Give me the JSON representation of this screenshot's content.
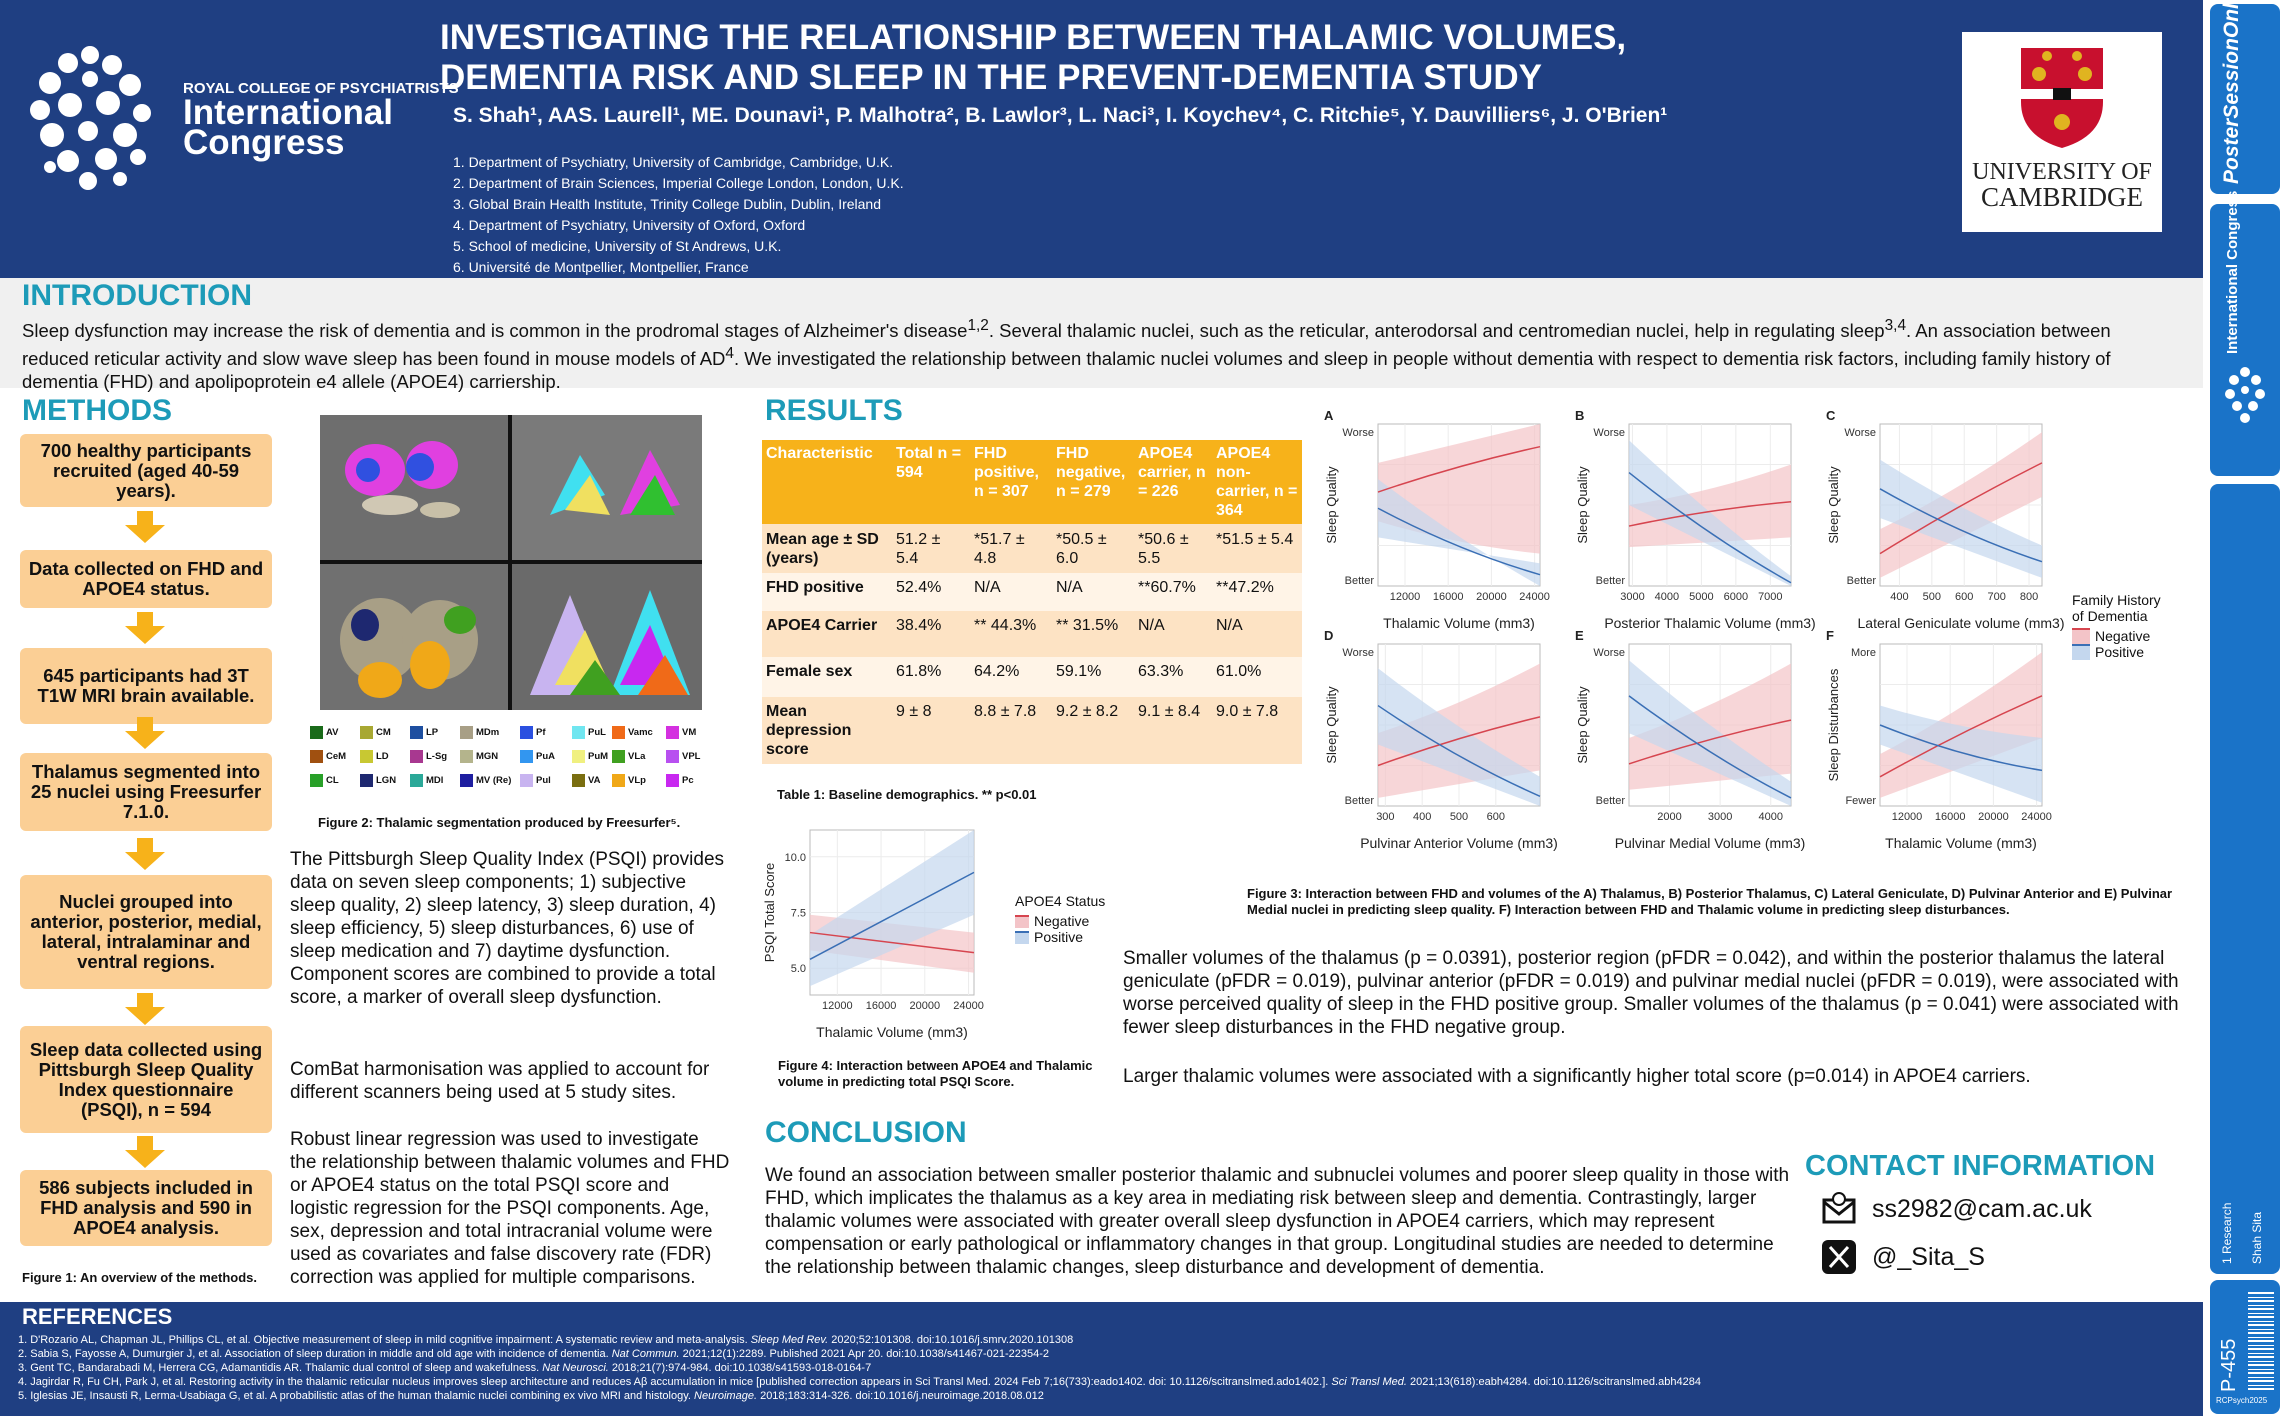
{
  "header": {
    "logo_small": "ROYAL COLLEGE OF PSYCHIATRISTS",
    "logo_big_1": "International",
    "logo_big_2": "Congress",
    "title_1": "INVESTIGATING THE RELATIONSHIP BETWEEN THALAMIC VOLUMES,",
    "title_2": "DEMENTIA RISK AND SLEEP IN THE PREVENT-DEMENTIA STUDY",
    "authors": "S. Shah¹, AAS. Laurell¹, ME. Dounavi¹, P. Malhotra², B. Lawlor³, L. Naci³, I. Koychev⁴, C. Ritchie⁵, Y. Dauvilliers⁶, J. O'Brien¹",
    "affiliations": [
      "1. Department of Psychiatry, University of Cambridge, Cambridge, U.K.",
      "2. Department of Brain Sciences, Imperial College London, London, U.K.",
      "3. Global Brain Health Institute, Trinity College Dublin, Dublin, Ireland",
      "4. Department of Psychiatry, University of Oxford, Oxford",
      "5. School of medicine, University of St Andrews, U.K.",
      "6. Université de Montpellier, Montpellier, France"
    ],
    "university_1": "UNIVERSITY OF",
    "university_2": "CAMBRIDGE"
  },
  "side_strip": {
    "poster_session": "PosterSessionOnline",
    "congress": "International Congress",
    "track": "1 Research",
    "author": "Shah Sita",
    "poster_id": "P-455",
    "footer": "RCPsych2025"
  },
  "intro": {
    "heading": "INTRODUCTION",
    "text_html": "Sleep dysfunction may increase the risk of dementia and is common in the prodromal stages of Alzheimer's disease<sup>1,2</sup>. Several thalamic nuclei, such as the reticular, anterodorsal and centromedian nuclei, help in regulating sleep<sup>3,4</sup>. An association between reduced reticular activity and slow wave sleep has been found in mouse models of AD<sup>4</sup>. We investigated the relationship between thalamic nuclei volumes and sleep in people without dementia with respect to dementia risk factors, including family history of dementia (FHD) and apolipoprotein e4 allele (APOE4) carriership."
  },
  "methods": {
    "heading": "METHODS",
    "flow": [
      "700 healthy participants recruited (aged 40-59 years).",
      "Data collected on FHD and APOE4 status.",
      "645 participants had 3T T1W MRI brain available.",
      "Thalamus segmented into 25 nuclei using Freesurfer 7.1.0.",
      "Nuclei grouped into anterior, posterior, medial, lateral, intralaminar and ventral regions.",
      "Sleep data collected using Pittsburgh Sleep Quality Index questionnaire (PSQI), n = 594",
      "586 subjects included in FHD analysis and 590 in APOE4 analysis."
    ],
    "fig1_caption": "Figure 1: An overview of the methods.",
    "fig2_caption": "Figure 2: Thalamic segmentation produced by Freesurfer⁵.",
    "nuclei_legend": [
      {
        "label": "AV",
        "color": "#1a6b1a"
      },
      {
        "label": "CM",
        "color": "#a8a832"
      },
      {
        "label": "LP",
        "color": "#1e4fa0"
      },
      {
        "label": "MDm",
        "color": "#a89f86"
      },
      {
        "label": "Pf",
        "color": "#2b50e0"
      },
      {
        "label": "PuL",
        "color": "#70e6f0"
      },
      {
        "label": "Vamc",
        "color": "#f06a18"
      },
      {
        "label": "VM",
        "color": "#d430e0"
      },
      {
        "label": "CeM",
        "color": "#a05010"
      },
      {
        "label": "LD",
        "color": "#c8c832"
      },
      {
        "label": "L-Sg",
        "color": "#a83890"
      },
      {
        "label": "MGN",
        "color": "#b4b48c"
      },
      {
        "label": "PuA",
        "color": "#3296f0"
      },
      {
        "label": "PuM",
        "color": "#f0f080"
      },
      {
        "label": "VLa",
        "color": "#40a020"
      },
      {
        "label": "VPL",
        "color": "#b850f0"
      },
      {
        "label": "CL",
        "color": "#28a028"
      },
      {
        "label": "LGN",
        "color": "#1e2870"
      },
      {
        "label": "MDl",
        "color": "#2aa898"
      },
      {
        "label": "MV (Re)",
        "color": "#1e1ea0"
      },
      {
        "label": "Pul",
        "color": "#c8b4f0"
      },
      {
        "label": "VA",
        "color": "#7a6e10"
      },
      {
        "label": "VLp",
        "color": "#f0a818"
      },
      {
        "label": "Pc",
        "color": "#c828f0"
      }
    ],
    "p1": "The Pittsburgh Sleep Quality Index (PSQI) provides data on seven sleep components; 1) subjective sleep quality, 2) sleep latency, 3) sleep duration, 4) sleep efficiency, 5) sleep disturbances, 6) use of sleep medication and 7) daytime dysfunction. Component scores are combined to provide a total score, a marker of overall sleep dysfunction.",
    "p2": "ComBat harmonisation was applied to account for different scanners being used at 5 study sites.",
    "p3": "Robust linear regression was used to investigate the relationship between thalamic volumes and FHD or APOE4 status on the total PSQI score and logistic regression for the PSQI components. Age, sex, depression and total intracranial volume were used as covariates and false discovery rate (FDR) correction was applied for multiple comparisons."
  },
  "results": {
    "heading": "RESULTS",
    "table": {
      "headers": [
        "Characteristic",
        "Total n = 594",
        "FHD positive, n = 307",
        "FHD negative, n = 279",
        "APOE4 carrier, n = 226",
        "APOE4 non-carrier, n = 364"
      ],
      "rows": [
        [
          "Mean age ± SD (years)",
          "51.2 ± 5.4",
          "*51.7 ± 4.8",
          "*50.5 ± 6.0",
          "*50.6 ± 5.5",
          "*51.5 ± 5.4"
        ],
        [
          "FHD positive",
          "52.4%",
          "N/A",
          "N/A",
          "**60.7%",
          "**47.2%"
        ],
        [
          "APOE4 Carrier",
          "38.4%",
          "** 44.3%",
          "** 31.5%",
          "N/A",
          "N/A"
        ],
        [
          "Female sex",
          "61.8%",
          "64.2%",
          "59.1%",
          "63.3%",
          "61.0%"
        ],
        [
          "Mean depression score",
          "9 ± 8",
          "8.8 ± 7.8",
          "9.2 ± 8.2",
          "9.1 ± 8.4",
          "9.0 ± 7.8"
        ]
      ],
      "caption": "Table 1: Baseline demographics. ** p<0.01"
    },
    "fig4_caption": "Figure 4: Interaction between APOE4 and Thalamic volume in predicting total PSQI Score.",
    "fig3_caption": "Figure 3: Interaction between FHD and volumes of the A) Thalamus, B) Posterior Thalamus, C) Lateral Geniculate, D) Pulvinar Anterior and E) Pulvinar Medial nuclei in predicting sleep quality. F) Interaction between FHD and Thalamic volume in predicting sleep disturbances.",
    "text1": "Smaller volumes of the thalamus (p = 0.0391), posterior region (pFDR = 0.042), and within the posterior thalamus the lateral geniculate (pFDR = 0.019), pulvinar anterior (pFDR = 0.019) and pulvinar medial nuclei (pFDR = 0.019), were associated with worse perceived quality of sleep in the FHD positive group. Smaller volumes of the thalamus (p = 0.041) were associated with fewer sleep disturbances in the FHD negative group.",
    "text2": "Larger thalamic volumes were associated with a significantly higher total score (p=0.014) in APOE4 carriers.",
    "fhd_legend": {
      "title_1": "Family History",
      "title_2": "of Dementia",
      "neg": "Negative",
      "pos": "Positive"
    },
    "apoe_legend": {
      "title": "APOE4 Status",
      "neg": "Negative",
      "pos": "Positive"
    }
  },
  "conclusion": {
    "heading": "CONCLUSION",
    "text": "We found an association between smaller posterior thalamic and subnuclei volumes and poorer sleep quality in those with FHD, which implicates the thalamus as a key area in mediating risk between sleep and dementia. Contrastingly, larger thalamic volumes were associated with greater overall sleep dysfunction in APOE4 carriers, which may represent compensation or early pathological or inflammatory changes in that group. Longitudinal studies are needed to determine the relationship between thalamic changes, sleep disturbance and development of dementia."
  },
  "contact": {
    "heading": "CONTACT INFORMATION",
    "email": "ss2982@cam.ac.uk",
    "handle": "@_Sita_S"
  },
  "references": {
    "heading": "REFERENCES",
    "items_html": [
      "1. D'Rozario AL, Chapman JL, Phillips CL, et al. Objective measurement of sleep in mild cognitive impairment: A systematic review and meta-analysis. <i>Sleep Med Rev.</i> 2020;52:101308. doi:10.1016/j.smrv.2020.101308",
      "2. Sabia S, Fayosse A, Dumurgier J, et al. Association of sleep duration in middle and old age with incidence of dementia. <i>Nat Commun.</i> 2021;12(1):2289. Published 2021 Apr 20. doi:10.1038/s41467-021-22354-2",
      "3. Gent TC, Bandarabadi M, Herrera CG, Adamantidis AR. Thalamic dual control of sleep and wakefulness. <i>Nat Neurosci.</i> 2018;21(7):974-984. doi:10.1038/s41593-018-0164-7",
      "4. Jagirdar R, Fu CH, Park J, et al. Restoring activity in the thalamic reticular nucleus improves sleep architecture and reduces Aβ accumulation in mice [published correction appears in Sci Transl Med. 2024 Feb 7;16(733):eado1402. doi: 10.1126/scitranslmed.ado1402.]. <i>Sci Transl Med.</i> 2021;13(618):eabh4284. doi:10.1126/scitranslmed.abh4284",
      "5. Iglesias JE, Insausti R, Lerma-Usabiaga G, et al. A probabilistic atlas of the human thalamic nuclei combining ex vivo MRI and histology. <i>Neuroimage.</i> 2018;183:314-326. doi:10.1016/j.neuroimage.2018.08.012"
    ]
  },
  "colors": {
    "navy": "#1f3f82",
    "teal": "#1d9bb8",
    "orange": "#f7b21a",
    "neg_line": "#d6454f",
    "pos_line": "#3a6fb5"
  },
  "chart_data": [
    {
      "id": "A",
      "type": "line",
      "xlabel": "Thalamic Volume (mm3)",
      "ylabel": "Sleep Quality",
      "ytop": "Worse",
      "ybottom": "Better",
      "xticks": [
        "12000",
        "16000",
        "20000",
        "24000"
      ],
      "xlim": [
        9500,
        24500
      ],
      "series": [
        {
          "name": "Negative",
          "x": [
            9500,
            24500
          ],
          "y": [
            0.58,
            0.86
          ],
          "ci": [
            [
              0.4,
              0.76
            ],
            [
              0.2,
              1.0
            ]
          ]
        },
        {
          "name": "Positive",
          "x": [
            9500,
            24500
          ],
          "y": [
            0.48,
            0.07
          ],
          "ci": [
            [
              0.66,
              0.3
            ],
            [
              0.0,
              0.14
            ]
          ]
        }
      ]
    },
    {
      "id": "B",
      "type": "line",
      "xlabel": "Posterior Thalamic Volume (mm3)",
      "ylabel": "Sleep Quality",
      "ytop": "Worse",
      "ybottom": "Better",
      "xticks": [
        "3000",
        "4000",
        "5000",
        "6000",
        "7000"
      ],
      "xlim": [
        2900,
        7600
      ],
      "series": [
        {
          "name": "Negative",
          "x": [
            2900,
            7600
          ],
          "y": [
            0.37,
            0.52
          ],
          "ci": [
            [
              0.5,
              0.24
            ],
            [
              0.75,
              0.3
            ]
          ]
        },
        {
          "name": "Positive",
          "x": [
            2900,
            7600
          ],
          "y": [
            0.7,
            0.02
          ],
          "ci": [
            [
              0.9,
              0.5
            ],
            [
              0.06,
              0.0
            ]
          ]
        }
      ]
    },
    {
      "id": "C",
      "type": "line",
      "xlabel": "Lateral Geniculate volume (mm3)",
      "ylabel": "Sleep Quality",
      "ytop": "Worse",
      "ybottom": "Better",
      "xticks": [
        "400",
        "500",
        "600",
        "700",
        "800"
      ],
      "xlim": [
        340,
        840
      ],
      "series": [
        {
          "name": "Negative",
          "x": [
            340,
            840
          ],
          "y": [
            0.2,
            0.76
          ],
          "ci": [
            [
              0.35,
              0.05
            ],
            [
              0.95,
              0.55
            ]
          ]
        },
        {
          "name": "Positive",
          "x": [
            340,
            840
          ],
          "y": [
            0.6,
            0.15
          ],
          "ci": [
            [
              0.78,
              0.42
            ],
            [
              0.25,
              0.05
            ]
          ]
        }
      ]
    },
    {
      "id": "D",
      "type": "line",
      "xlabel": "Pulvinar Anterior Volume (mm3)",
      "ylabel": "Sleep Quality",
      "ytop": "Worse",
      "ybottom": "Better",
      "xticks": [
        "300",
        "400",
        "500",
        "600"
      ],
      "xlim": [
        280,
        720
      ],
      "series": [
        {
          "name": "Negative",
          "x": [
            280,
            720
          ],
          "y": [
            0.25,
            0.55
          ],
          "ci": [
            [
              0.45,
              0.05
            ],
            [
              0.88,
              0.22
            ]
          ]
        },
        {
          "name": "Positive",
          "x": [
            280,
            720
          ],
          "y": [
            0.62,
            0.06
          ],
          "ci": [
            [
              0.85,
              0.38
            ],
            [
              0.18,
              0.0
            ]
          ]
        }
      ]
    },
    {
      "id": "E",
      "type": "line",
      "xlabel": "Pulvinar Medial Volume (mm3)",
      "ylabel": "Sleep Quality",
      "ytop": "Worse",
      "ybottom": "Better",
      "xticks": [
        "2000",
        "3000",
        "4000"
      ],
      "xlim": [
        1200,
        4400
      ],
      "series": [
        {
          "name": "Negative",
          "x": [
            1200,
            4400
          ],
          "y": [
            0.26,
            0.53
          ],
          "ci": [
            [
              0.42,
              0.1
            ],
            [
              0.88,
              0.2
            ]
          ]
        },
        {
          "name": "Positive",
          "x": [
            1200,
            4400
          ],
          "y": [
            0.68,
            0.05
          ],
          "ci": [
            [
              0.9,
              0.45
            ],
            [
              0.15,
              0.0
            ]
          ]
        }
      ]
    },
    {
      "id": "F",
      "type": "line",
      "xlabel": "Thalamic Volume (mm3)",
      "ylabel": "Sleep Disturbances",
      "ytop": "More",
      "ybottom": "Fewer",
      "xticks": [
        "12000",
        "16000",
        "20000",
        "24000"
      ],
      "xlim": [
        9500,
        24500
      ],
      "series": [
        {
          "name": "Negative",
          "x": [
            9500,
            24500
          ],
          "y": [
            0.18,
            0.68
          ],
          "ci": [
            [
              0.32,
              0.05
            ],
            [
              0.95,
              0.42
            ]
          ]
        },
        {
          "name": "Positive",
          "x": [
            9500,
            24500
          ],
          "y": [
            0.5,
            0.22
          ],
          "ci": [
            [
              0.62,
              0.38
            ],
            [
              0.42,
              0.02
            ]
          ]
        }
      ]
    },
    {
      "id": "fig4",
      "type": "line",
      "xlabel": "Thalamic Volume (mm3)",
      "ylabel": "PSQI Total Score",
      "yticks": [
        "5.0",
        "7.5",
        "10.0"
      ],
      "ylim": [
        3.8,
        11.2
      ],
      "xticks": [
        "12000",
        "16000",
        "20000",
        "24000"
      ],
      "xlim": [
        9500,
        24500
      ],
      "series": [
        {
          "name": "Negative",
          "x": [
            9500,
            24500
          ],
          "y": [
            6.6,
            5.7
          ],
          "ci": [
            [
              7.4,
              5.8
            ],
            [
              6.6,
              4.8
            ]
          ]
        },
        {
          "name": "Positive",
          "x": [
            9500,
            24500
          ],
          "y": [
            5.4,
            9.3
          ],
          "ci": [
            [
              6.5,
              4.2
            ],
            [
              11.2,
              7.4
            ]
          ]
        }
      ]
    }
  ]
}
